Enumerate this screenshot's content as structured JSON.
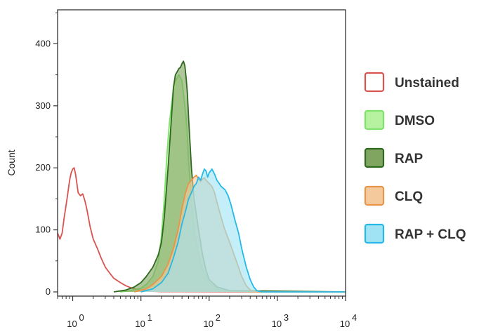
{
  "chart_data": {
    "type": "area",
    "ylabel": "Count",
    "xlabel": "",
    "x_scale": "log",
    "xlim": [
      0.6,
      10000
    ],
    "ylim": [
      0,
      480
    ],
    "x_ticks": [
      {
        "value": 1,
        "label": "10",
        "exp": "0"
      },
      {
        "value": 10,
        "label": "10",
        "exp": "1"
      },
      {
        "value": 100,
        "label": "10",
        "exp": "2"
      },
      {
        "value": 1000,
        "label": "10",
        "exp": "3"
      },
      {
        "value": 10000,
        "label": "10",
        "exp": "4"
      }
    ],
    "y_ticks": [
      0,
      100,
      200,
      300,
      400
    ],
    "legend_position": "right",
    "series": [
      {
        "name": "Unstained",
        "stroke": "#d9534f",
        "fill": "none",
        "points": [
          [
            0.6,
            95
          ],
          [
            0.65,
            85
          ],
          [
            0.7,
            95
          ],
          [
            0.75,
            120
          ],
          [
            0.8,
            140
          ],
          [
            0.85,
            160
          ],
          [
            0.9,
            180
          ],
          [
            0.95,
            192
          ],
          [
            1.0,
            198
          ],
          [
            1.05,
            200
          ],
          [
            1.1,
            190
          ],
          [
            1.15,
            175
          ],
          [
            1.2,
            160
          ],
          [
            1.3,
            155
          ],
          [
            1.4,
            158
          ],
          [
            1.5,
            148
          ],
          [
            1.6,
            135
          ],
          [
            1.8,
            105
          ],
          [
            2.0,
            85
          ],
          [
            2.3,
            70
          ],
          [
            2.6,
            55
          ],
          [
            3.0,
            40
          ],
          [
            3.5,
            30
          ],
          [
            4.0,
            22
          ],
          [
            5.0,
            15
          ],
          [
            6.0,
            10
          ],
          [
            7.0,
            7
          ],
          [
            8.0,
            5
          ],
          [
            9.0,
            4
          ],
          [
            10,
            3
          ],
          [
            12,
            2
          ],
          [
            15,
            1
          ],
          [
            20,
            0.5
          ],
          [
            10000,
            0
          ]
        ]
      },
      {
        "name": "DMSO",
        "stroke": "#7ee26b",
        "fill": "#b6f29f",
        "points": [
          [
            5,
            0
          ],
          [
            7,
            2
          ],
          [
            10,
            6
          ],
          [
            12,
            12
          ],
          [
            15,
            25
          ],
          [
            18,
            50
          ],
          [
            20,
            90
          ],
          [
            22,
            150
          ],
          [
            24,
            220
          ],
          [
            26,
            270
          ],
          [
            28,
            300
          ],
          [
            30,
            330
          ],
          [
            32,
            340
          ],
          [
            34,
            345
          ],
          [
            36,
            350
          ],
          [
            38,
            345
          ],
          [
            40,
            340
          ],
          [
            42,
            320
          ],
          [
            44,
            300
          ],
          [
            46,
            280
          ],
          [
            48,
            250
          ],
          [
            50,
            210
          ],
          [
            55,
            150
          ],
          [
            60,
            100
          ],
          [
            70,
            60
          ],
          [
            80,
            35
          ],
          [
            100,
            15
          ],
          [
            130,
            5
          ],
          [
            200,
            1
          ],
          [
            10000,
            0
          ]
        ]
      },
      {
        "name": "RAP",
        "stroke": "#2f6a1f",
        "fill": "#7fa560",
        "points": [
          [
            4,
            0
          ],
          [
            6,
            3
          ],
          [
            8,
            8
          ],
          [
            10,
            15
          ],
          [
            12,
            25
          ],
          [
            15,
            40
          ],
          [
            18,
            60
          ],
          [
            20,
            80
          ],
          [
            22,
            120
          ],
          [
            25,
            200
          ],
          [
            28,
            280
          ],
          [
            30,
            330
          ],
          [
            32,
            350
          ],
          [
            34,
            355
          ],
          [
            36,
            360
          ],
          [
            38,
            362
          ],
          [
            40,
            368
          ],
          [
            42,
            372
          ],
          [
            44,
            365
          ],
          [
            46,
            345
          ],
          [
            48,
            320
          ],
          [
            50,
            280
          ],
          [
            55,
            200
          ],
          [
            60,
            150
          ],
          [
            70,
            100
          ],
          [
            80,
            60
          ],
          [
            90,
            35
          ],
          [
            100,
            20
          ],
          [
            130,
            8
          ],
          [
            200,
            2
          ],
          [
            10000,
            0
          ]
        ]
      },
      {
        "name": "CLQ",
        "stroke": "#e8954a",
        "fill": "#f4c99c",
        "points": [
          [
            8,
            0
          ],
          [
            12,
            5
          ],
          [
            15,
            12
          ],
          [
            20,
            25
          ],
          [
            25,
            45
          ],
          [
            30,
            70
          ],
          [
            35,
            100
          ],
          [
            40,
            135
          ],
          [
            45,
            160
          ],
          [
            50,
            175
          ],
          [
            55,
            180
          ],
          [
            60,
            185
          ],
          [
            65,
            188
          ],
          [
            70,
            182
          ],
          [
            75,
            178
          ],
          [
            80,
            182
          ],
          [
            85,
            184
          ],
          [
            90,
            180
          ],
          [
            100,
            175
          ],
          [
            110,
            170
          ],
          [
            120,
            160
          ],
          [
            130,
            145
          ],
          [
            150,
            120
          ],
          [
            170,
            100
          ],
          [
            200,
            80
          ],
          [
            250,
            50
          ],
          [
            300,
            25
          ],
          [
            350,
            10
          ],
          [
            400,
            3
          ],
          [
            500,
            0
          ],
          [
            10000,
            0
          ]
        ]
      },
      {
        "name": "RAP + CLQ",
        "stroke": "#27b9e6",
        "fill": "#9fe3f4",
        "points": [
          [
            10,
            0
          ],
          [
            15,
            5
          ],
          [
            20,
            15
          ],
          [
            25,
            30
          ],
          [
            30,
            55
          ],
          [
            35,
            80
          ],
          [
            40,
            110
          ],
          [
            45,
            130
          ],
          [
            50,
            150
          ],
          [
            55,
            160
          ],
          [
            60,
            170
          ],
          [
            65,
            175
          ],
          [
            70,
            185
          ],
          [
            75,
            180
          ],
          [
            80,
            190
          ],
          [
            85,
            198
          ],
          [
            90,
            195
          ],
          [
            95,
            185
          ],
          [
            100,
            192
          ],
          [
            110,
            198
          ],
          [
            120,
            190
          ],
          [
            130,
            180
          ],
          [
            140,
            175
          ],
          [
            150,
            170
          ],
          [
            170,
            165
          ],
          [
            190,
            155
          ],
          [
            210,
            140
          ],
          [
            240,
            115
          ],
          [
            270,
            95
          ],
          [
            300,
            70
          ],
          [
            350,
            40
          ],
          [
            400,
            20
          ],
          [
            450,
            8
          ],
          [
            500,
            2
          ],
          [
            600,
            0
          ],
          [
            10000,
            0
          ]
        ]
      }
    ]
  }
}
